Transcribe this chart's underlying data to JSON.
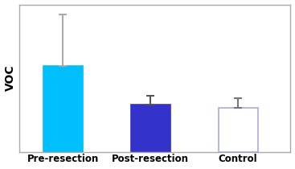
{
  "categories": [
    "Pre-resection",
    "Post-resection",
    "Control"
  ],
  "values": [
    0.58,
    0.32,
    0.3
  ],
  "errors": [
    0.35,
    0.06,
    0.065
  ],
  "bar_colors": [
    "#00BFFF",
    "#3333CC",
    "#FFFFFF"
  ],
  "bar_edgecolors": [
    "#00BFFF",
    "#3333CC",
    "#AAAADD"
  ],
  "error_colors": [
    "#AAAAAA",
    "#555555",
    "#777777"
  ],
  "ylabel": "VOC",
  "ylim": [
    0,
    1.0
  ],
  "bar_width": 0.45,
  "x_positions": [
    0.5,
    1.5,
    2.5
  ],
  "xlim": [
    0.0,
    3.1
  ],
  "background_color": "#FFFFFF",
  "axes_background": "#FFFFFF",
  "spine_color": "#AAAAAA",
  "ylabel_fontsize": 10,
  "tick_label_fontsize": 8.5
}
